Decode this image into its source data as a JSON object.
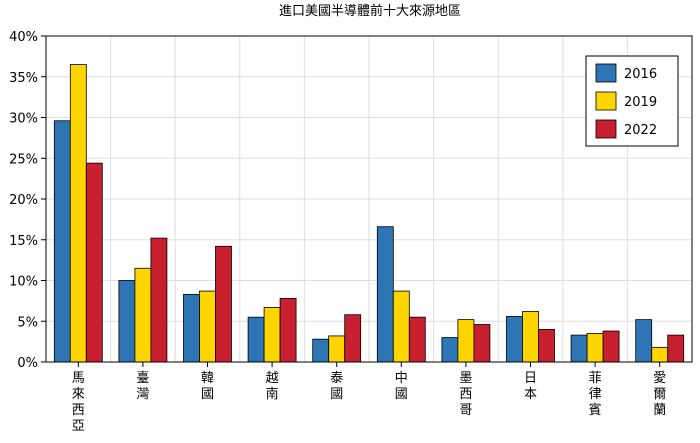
{
  "chart_data": {
    "type": "bar",
    "title": "進口美國半導體前十大來源地區",
    "xlabel": "",
    "ylabel": "",
    "ylim": [
      0,
      40
    ],
    "yticks": [
      "0%",
      "5%",
      "10%",
      "15%",
      "20%",
      "25%",
      "30%",
      "35%",
      "40%"
    ],
    "grid": true,
    "legend_position": "top-right",
    "categories": [
      "馬來西亞",
      "臺灣",
      "韓國",
      "越南",
      "泰國",
      "中國",
      "墨西哥",
      "日本",
      "菲律賓",
      "愛爾蘭"
    ],
    "series": [
      {
        "name": "2016",
        "color": "#2e75b6",
        "values": [
          29.6,
          10.0,
          8.3,
          5.5,
          2.8,
          16.6,
          3.0,
          5.6,
          3.3,
          5.2
        ]
      },
      {
        "name": "2019",
        "color": "#ffd500",
        "values": [
          36.5,
          11.5,
          8.7,
          6.7,
          3.2,
          8.7,
          5.2,
          6.2,
          3.5,
          1.8
        ]
      },
      {
        "name": "2022",
        "color": "#c8202f",
        "values": [
          24.4,
          15.2,
          14.2,
          7.8,
          5.8,
          5.5,
          4.6,
          4.0,
          3.8,
          3.3
        ]
      }
    ]
  }
}
